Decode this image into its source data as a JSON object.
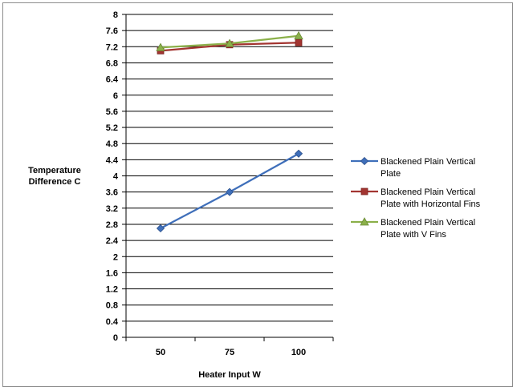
{
  "chart_data": {
    "type": "line",
    "title": "",
    "xlabel": "Heater Input W",
    "ylabel": "Temperature Difference C",
    "ylabel_lines": [
      "Temperature",
      "Difference C"
    ],
    "categories": [
      "50",
      "75",
      "100"
    ],
    "ylim": [
      0,
      8
    ],
    "yticks": [
      0,
      0.4,
      0.8,
      1.2,
      1.6,
      2,
      2.4,
      2.8,
      3.2,
      3.6,
      4,
      4.4,
      4.8,
      5.2,
      5.6,
      6,
      6.4,
      6.8,
      7.2,
      7.6,
      8
    ],
    "grid": "horizontal",
    "legend_position": "right",
    "series": [
      {
        "name": "Blackened Plain Vertical Plate",
        "name_lines": [
          "Blackened Plain Vertical",
          "Plate"
        ],
        "values": [
          2.7,
          3.6,
          4.55
        ],
        "color": "#3f6fba",
        "marker": "diamond"
      },
      {
        "name": "Blackened Plain Vertical Plate with  Horizontal Fins",
        "name_lines": [
          "Blackened Plain Vertical",
          "Plate with  Horizontal Fins"
        ],
        "values": [
          7.1,
          7.25,
          7.3
        ],
        "color": "#a33531",
        "marker": "square"
      },
      {
        "name": "Blackened Plain Vertical Plate with  V Fins",
        "name_lines": [
          "Blackened Plain Vertical",
          "Plate with  V Fins"
        ],
        "values": [
          7.18,
          7.28,
          7.47
        ],
        "color": "#8bb04a",
        "marker": "triangle"
      }
    ]
  }
}
